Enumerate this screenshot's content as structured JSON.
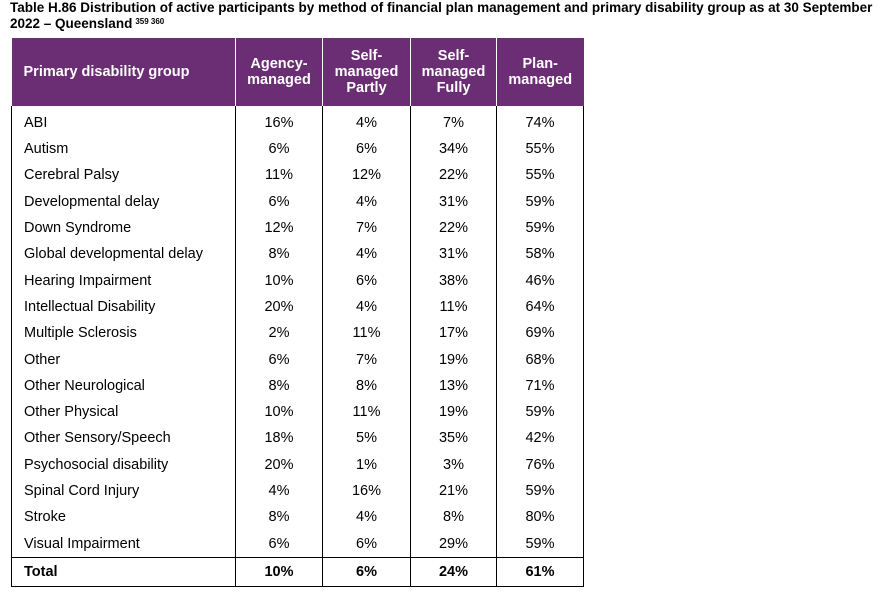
{
  "title": {
    "text": "Table H.86 Distribution of active participants by method of financial plan management and primary disability group as at 30 September 2022 – Queensland",
    "footnote_refs": "359 360"
  },
  "table": {
    "headers": [
      "Primary disability group",
      "Agency-\nmanaged",
      "Self-\nmanaged\nPartly",
      "Self-\nmanaged\nFully",
      "Plan-\nmanaged"
    ],
    "rows": [
      [
        "ABI",
        "16%",
        "4%",
        "7%",
        "74%"
      ],
      [
        "Autism",
        "6%",
        "6%",
        "34%",
        "55%"
      ],
      [
        "Cerebral Palsy",
        "11%",
        "12%",
        "22%",
        "55%"
      ],
      [
        "Developmental delay",
        "6%",
        "4%",
        "31%",
        "59%"
      ],
      [
        "Down Syndrome",
        "12%",
        "7%",
        "22%",
        "59%"
      ],
      [
        "Global developmental delay",
        "8%",
        "4%",
        "31%",
        "58%"
      ],
      [
        "Hearing Impairment",
        "10%",
        "6%",
        "38%",
        "46%"
      ],
      [
        "Intellectual Disability",
        "20%",
        "4%",
        "11%",
        "64%"
      ],
      [
        "Multiple Sclerosis",
        "2%",
        "11%",
        "17%",
        "69%"
      ],
      [
        "Other",
        "6%",
        "7%",
        "19%",
        "68%"
      ],
      [
        "Other Neurological",
        "8%",
        "8%",
        "13%",
        "71%"
      ],
      [
        "Other Physical",
        "10%",
        "11%",
        "19%",
        "59%"
      ],
      [
        "Other Sensory/Speech",
        "18%",
        "5%",
        "35%",
        "42%"
      ],
      [
        "Psychosocial disability",
        "20%",
        "1%",
        "3%",
        "76%"
      ],
      [
        "Spinal Cord Injury",
        "4%",
        "16%",
        "21%",
        "59%"
      ],
      [
        "Stroke",
        "8%",
        "4%",
        "8%",
        "80%"
      ],
      [
        "Visual Impairment",
        "6%",
        "6%",
        "29%",
        "59%"
      ]
    ],
    "total": [
      "Total",
      "10%",
      "6%",
      "24%",
      "61%"
    ]
  },
  "colors": {
    "header_bg": "#6b2d73",
    "header_text": "#ffffff"
  }
}
